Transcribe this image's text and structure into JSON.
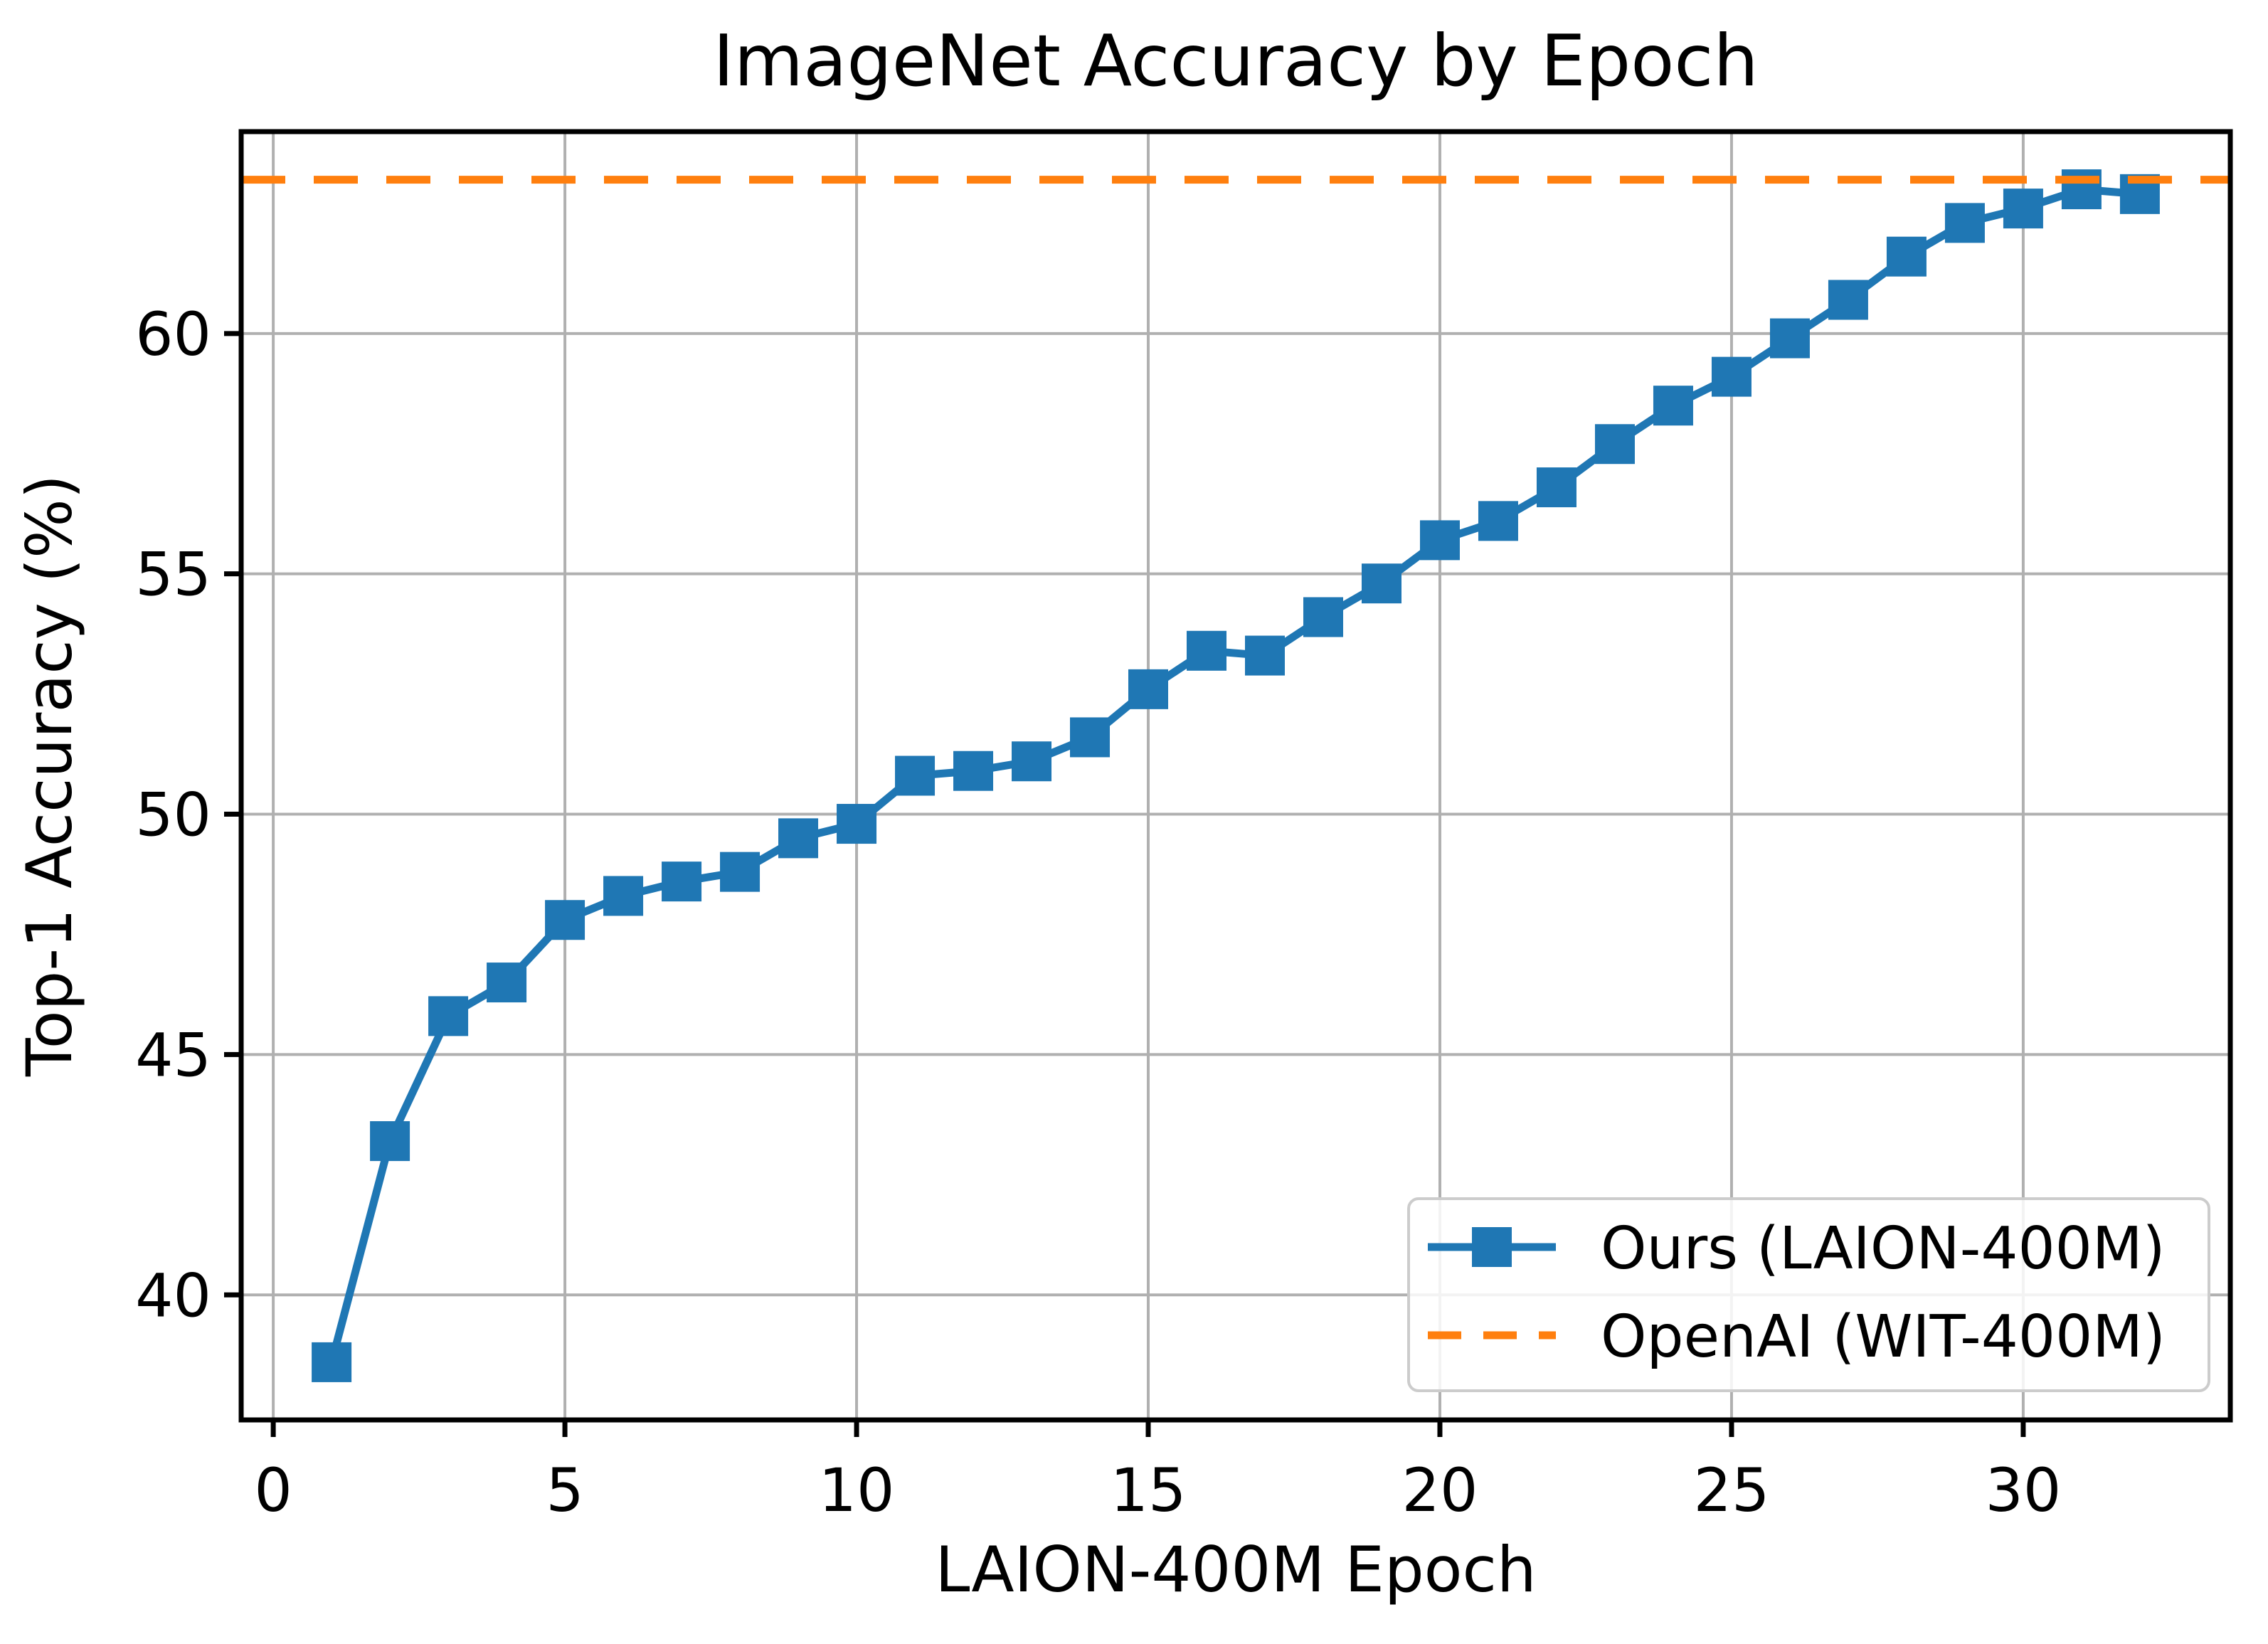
{
  "chart_data": {
    "type": "line",
    "title": "ImageNet Accuracy by Epoch",
    "xlabel": "LAION-400M Epoch",
    "ylabel": "Top-1 Accuracy (%)",
    "xlim": [
      -0.55,
      33.55
    ],
    "ylim": [
      37.4,
      64.2
    ],
    "xticks": [
      0,
      5,
      10,
      15,
      20,
      25,
      30
    ],
    "yticks": [
      40,
      45,
      50,
      55,
      60
    ],
    "grid": true,
    "grid_color": "#b0b0b0",
    "background_color": "#ffffff",
    "legend_position": "lower right",
    "series": [
      {
        "name": "Ours (LAION-400M)",
        "color": "#1f77b4",
        "marker": "square",
        "line_style": "solid",
        "x": [
          1,
          2,
          3,
          4,
          5,
          6,
          7,
          8,
          9,
          10,
          11,
          12,
          13,
          14,
          15,
          16,
          17,
          18,
          19,
          20,
          21,
          22,
          23,
          24,
          25,
          26,
          27,
          28,
          29,
          30,
          31,
          32
        ],
        "y": [
          38.6,
          43.2,
          45.8,
          46.5,
          47.8,
          48.3,
          48.6,
          48.8,
          49.5,
          49.8,
          50.8,
          50.9,
          51.1,
          51.6,
          52.6,
          53.4,
          53.3,
          54.1,
          54.8,
          55.7,
          56.1,
          56.8,
          57.7,
          58.5,
          59.1,
          59.9,
          60.7,
          61.6,
          62.3,
          62.6,
          63.0,
          62.9
        ]
      },
      {
        "name": "OpenAI (WIT-400M)",
        "color": "#ff7f0e",
        "marker": "none",
        "line_style": "dashed",
        "type": "hline",
        "y_value": 63.2
      }
    ]
  }
}
